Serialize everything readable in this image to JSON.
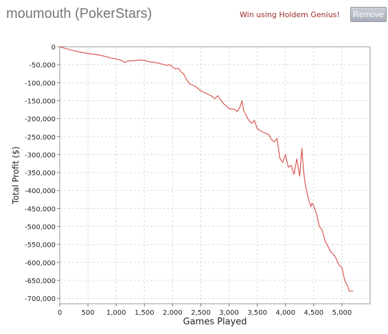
{
  "header": {
    "player_name": "moumouth (PokerStars)",
    "promo_link": "Win using Holdem Genius!",
    "remove_label": "Remove"
  },
  "colors": {
    "line": "#d9534f",
    "grid": "#d8d8d8",
    "promo_text": "#9a2a24",
    "title_text": "#767676"
  },
  "chart_data": {
    "type": "line",
    "title": "",
    "xlabel": "Games Played",
    "ylabel": "Total Profit ($)",
    "xlim": [
      0,
      5500
    ],
    "ylim": [
      -715000,
      0
    ],
    "grid": true,
    "x_ticks": [
      0,
      500,
      1000,
      1500,
      2000,
      2500,
      3000,
      3500,
      4000,
      4500,
      5000
    ],
    "x_tick_labels": [
      "0",
      "500",
      "1,000",
      "1,500",
      "2,000",
      "2,500",
      "3,000",
      "3,500",
      "4,000",
      "4,500",
      "5,000"
    ],
    "y_ticks": [
      0,
      -50000,
      -100000,
      -150000,
      -200000,
      -250000,
      -300000,
      -350000,
      -400000,
      -450000,
      -500000,
      -550000,
      -600000,
      -650000,
      -700000
    ],
    "y_tick_labels": [
      "0",
      "-50,000",
      "-100,000",
      "-150,000",
      "-200,000",
      "-250,000",
      "-300,000",
      "-350,000",
      "-400,000",
      "-450,000",
      "-500,000",
      "-550,000",
      "-600,000",
      "-650,000",
      "-700,000"
    ],
    "series": [
      {
        "x": [
          0,
          100,
          200,
          300,
          400,
          500,
          600,
          700,
          800,
          900,
          1000,
          1100,
          1150,
          1200,
          1300,
          1400,
          1500,
          1600,
          1700,
          1800,
          1900,
          1950,
          2050,
          2100,
          2150,
          2200,
          2250,
          2300,
          2400,
          2500,
          2600,
          2700,
          2750,
          2800,
          2850,
          2900,
          3000,
          3100,
          3150,
          3200,
          3230,
          3260,
          3300,
          3350,
          3400,
          3450,
          3500,
          3600,
          3700,
          3750,
          3800,
          3850,
          3900,
          3950,
          4000,
          4050,
          4100,
          4150,
          4200,
          4250,
          4290,
          4320,
          4350,
          4400,
          4450,
          4470,
          4500,
          4550,
          4600,
          4650,
          4700,
          4750,
          4800,
          4850,
          4900,
          4950,
          5000,
          5050,
          5080,
          5100,
          5130,
          5200
        ],
        "y": [
          0,
          -5000,
          -9000,
          -13000,
          -16000,
          -19000,
          -21000,
          -23000,
          -27000,
          -31000,
          -34000,
          -38000,
          -44000,
          -40000,
          -39000,
          -37000,
          -38000,
          -42000,
          -44000,
          -48000,
          -52000,
          -50000,
          -62000,
          -60000,
          -70000,
          -77000,
          -92000,
          -103000,
          -110000,
          -123000,
          -130000,
          -138000,
          -145000,
          -136000,
          -148000,
          -158000,
          -172000,
          -175000,
          -180000,
          -165000,
          -150000,
          -178000,
          -190000,
          -205000,
          -213000,
          -205000,
          -228000,
          -238000,
          -244000,
          -258000,
          -265000,
          -255000,
          -310000,
          -322000,
          -300000,
          -335000,
          -330000,
          -355000,
          -312000,
          -360000,
          -283000,
          -345000,
          -383000,
          -420000,
          -445000,
          -435000,
          -443000,
          -465000,
          -500000,
          -510000,
          -540000,
          -555000,
          -570000,
          -578000,
          -590000,
          -607000,
          -615000,
          -650000,
          -660000,
          -665000,
          -680000,
          -680000
        ]
      }
    ]
  }
}
